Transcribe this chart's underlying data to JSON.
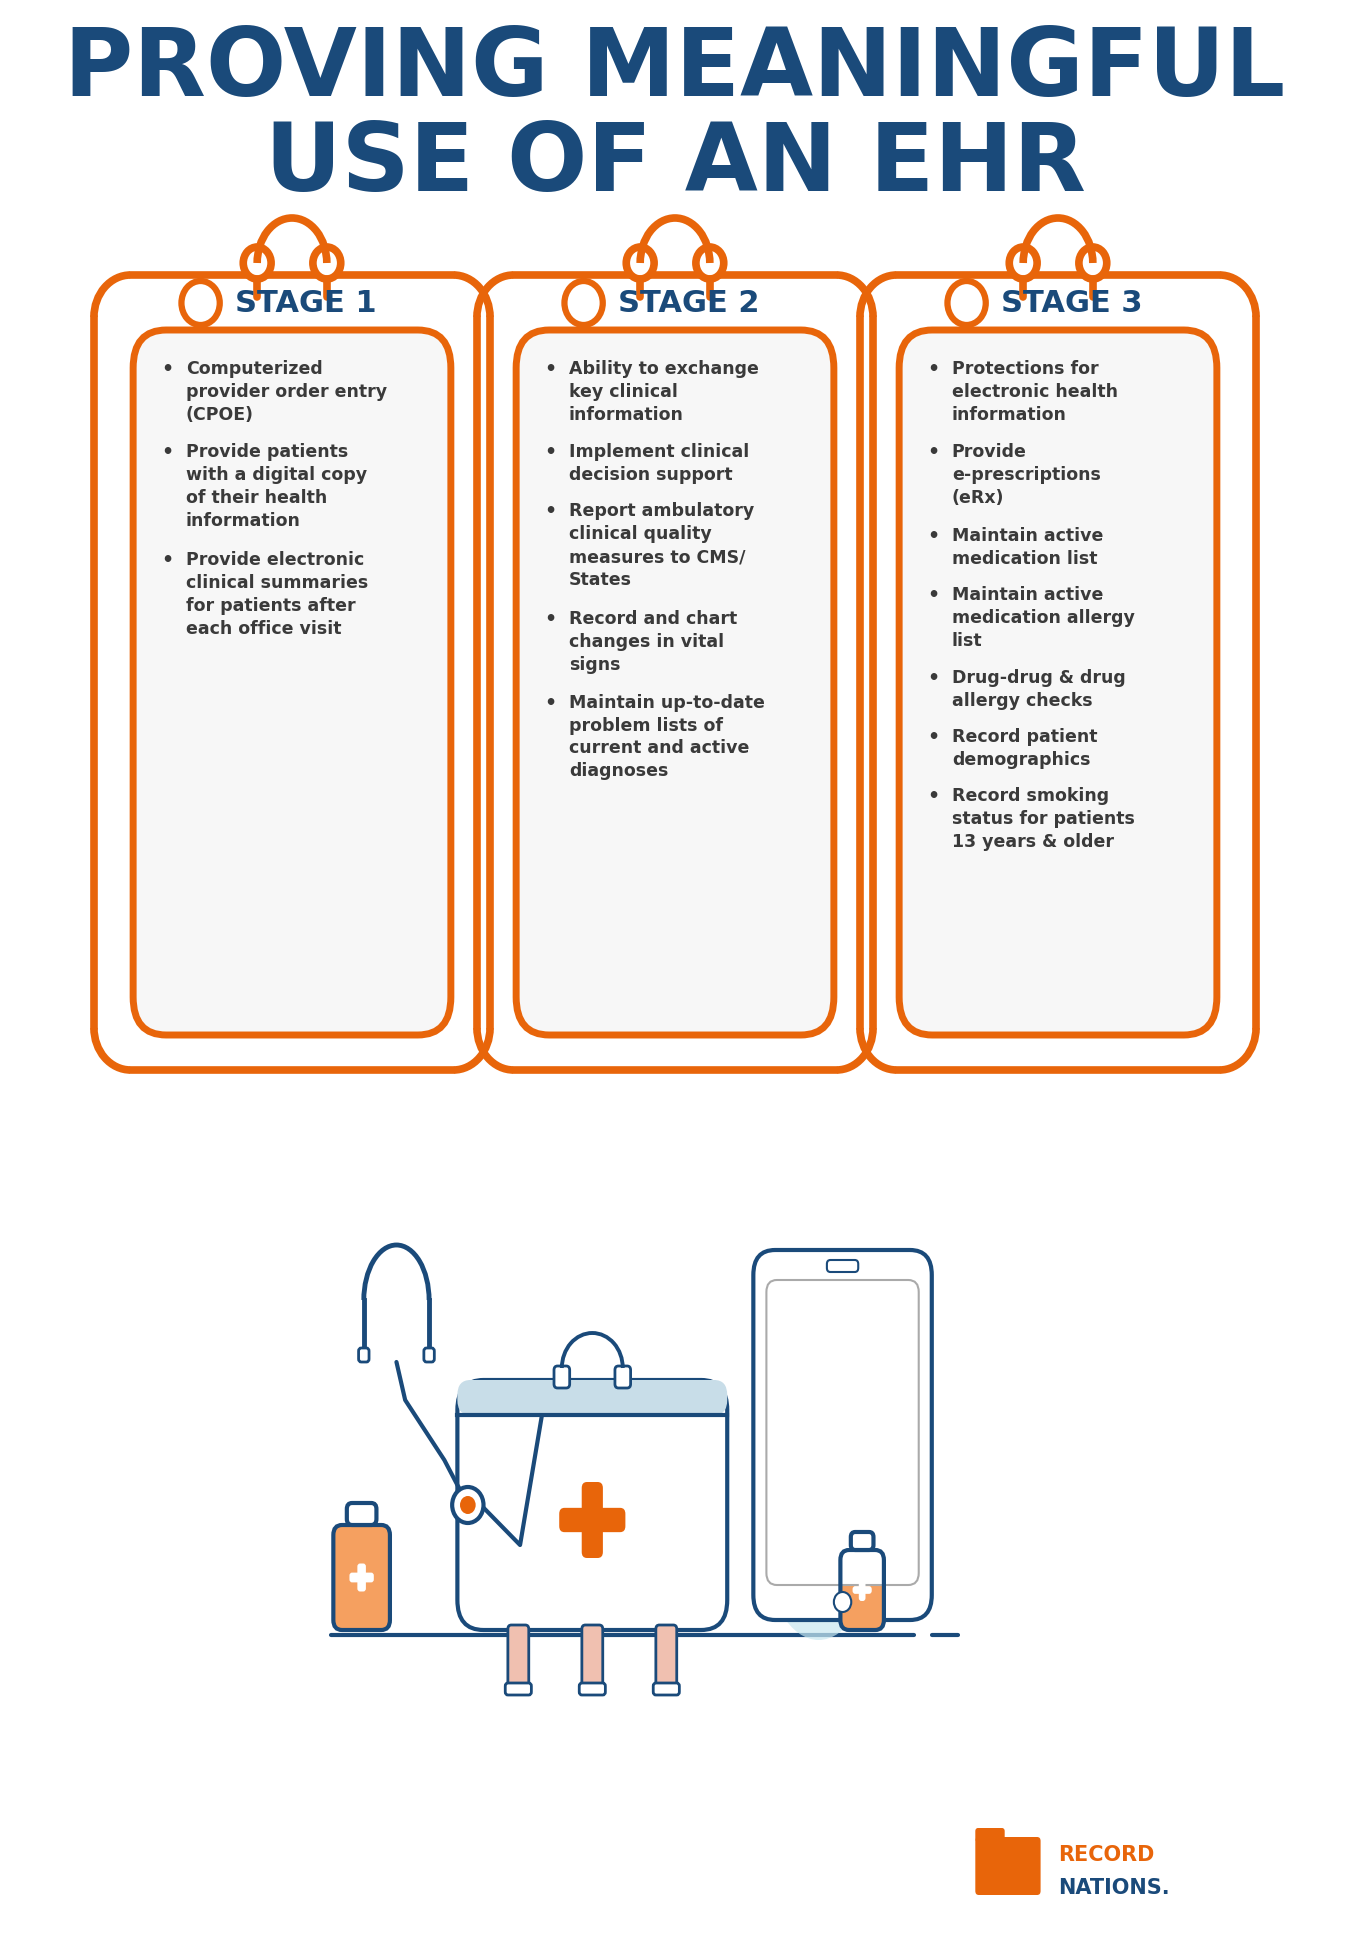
{
  "title_line1": "PROVING MEANINGFUL",
  "title_line2": "USE OF AN EHR",
  "title_color": "#1a4a7a",
  "orange_color": "#e8650a",
  "dark_blue": "#1a4a7a",
  "text_color": "#3a3a3a",
  "bg_color": "#ffffff",
  "card_bg": "#f5f5f5",
  "stages": [
    "STAGE 1",
    "STAGE 2",
    "STAGE 3"
  ],
  "stage1_items": [
    "Computerized\nprovider order entry\n(CPOE)",
    "Provide patients\nwith a digital copy\nof their health\ninformation",
    "Provide electronic\nclinical summaries\nfor patients after\neach office visit"
  ],
  "stage2_items": [
    "Ability to exchange\nkey clinical\ninformation",
    "Implement clinical\ndecision support",
    "Report ambulatory\nclinical quality\nmeasures to CMS/\nStates",
    "Record and chart\nchanges in vital\nsigns",
    "Maintain up-to-date\nproblem lists of\ncurrent and active\ndiagnoses"
  ],
  "stage3_items": [
    "Protections for\nelectronic health\ninformation",
    "Provide\ne-prescriptions\n(eRx)",
    "Maintain active\nmedication list",
    "Maintain active\nmedication allergy\nlist",
    "Drug-drug & drug\nallergy checks",
    "Record patient\ndemographics",
    "Record smoking\nstatus for patients\n13 years & older"
  ]
}
